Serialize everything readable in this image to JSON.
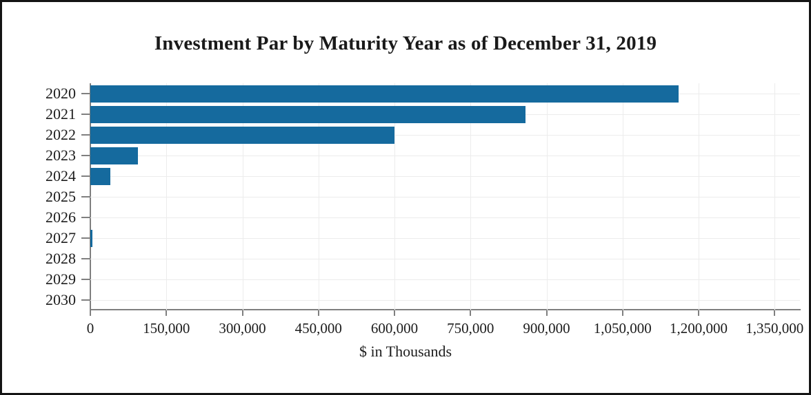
{
  "chart_data": {
    "type": "bar",
    "orientation": "horizontal",
    "title": "Investment Par by Maturity Year as of December 31, 2019",
    "xlabel": "$ in Thousands",
    "ylabel": "",
    "categories": [
      "2020",
      "2021",
      "2022",
      "2023",
      "2024",
      "2025",
      "2026",
      "2027",
      "2028",
      "2029",
      "2030"
    ],
    "values": [
      1160000,
      858000,
      600000,
      94000,
      40000,
      0,
      0,
      4000,
      0,
      0,
      0
    ],
    "xticks": [
      0,
      150000,
      300000,
      450000,
      600000,
      750000,
      900000,
      1050000,
      1200000,
      1350000
    ],
    "xtick_labels": [
      "0",
      "150,000",
      "300,000",
      "450,000",
      "600,000",
      "750,000",
      "900,000",
      "1,050,000",
      "1,200,000",
      "1,350,000"
    ],
    "xlim": [
      0,
      1400000
    ],
    "grid": true,
    "legend": false,
    "bar_color": "#156a9e",
    "gridline_color": "#ececec",
    "axis_color": "#7f7f7f",
    "frame_color": "#141414",
    "text_color": "#1c1c1c"
  }
}
